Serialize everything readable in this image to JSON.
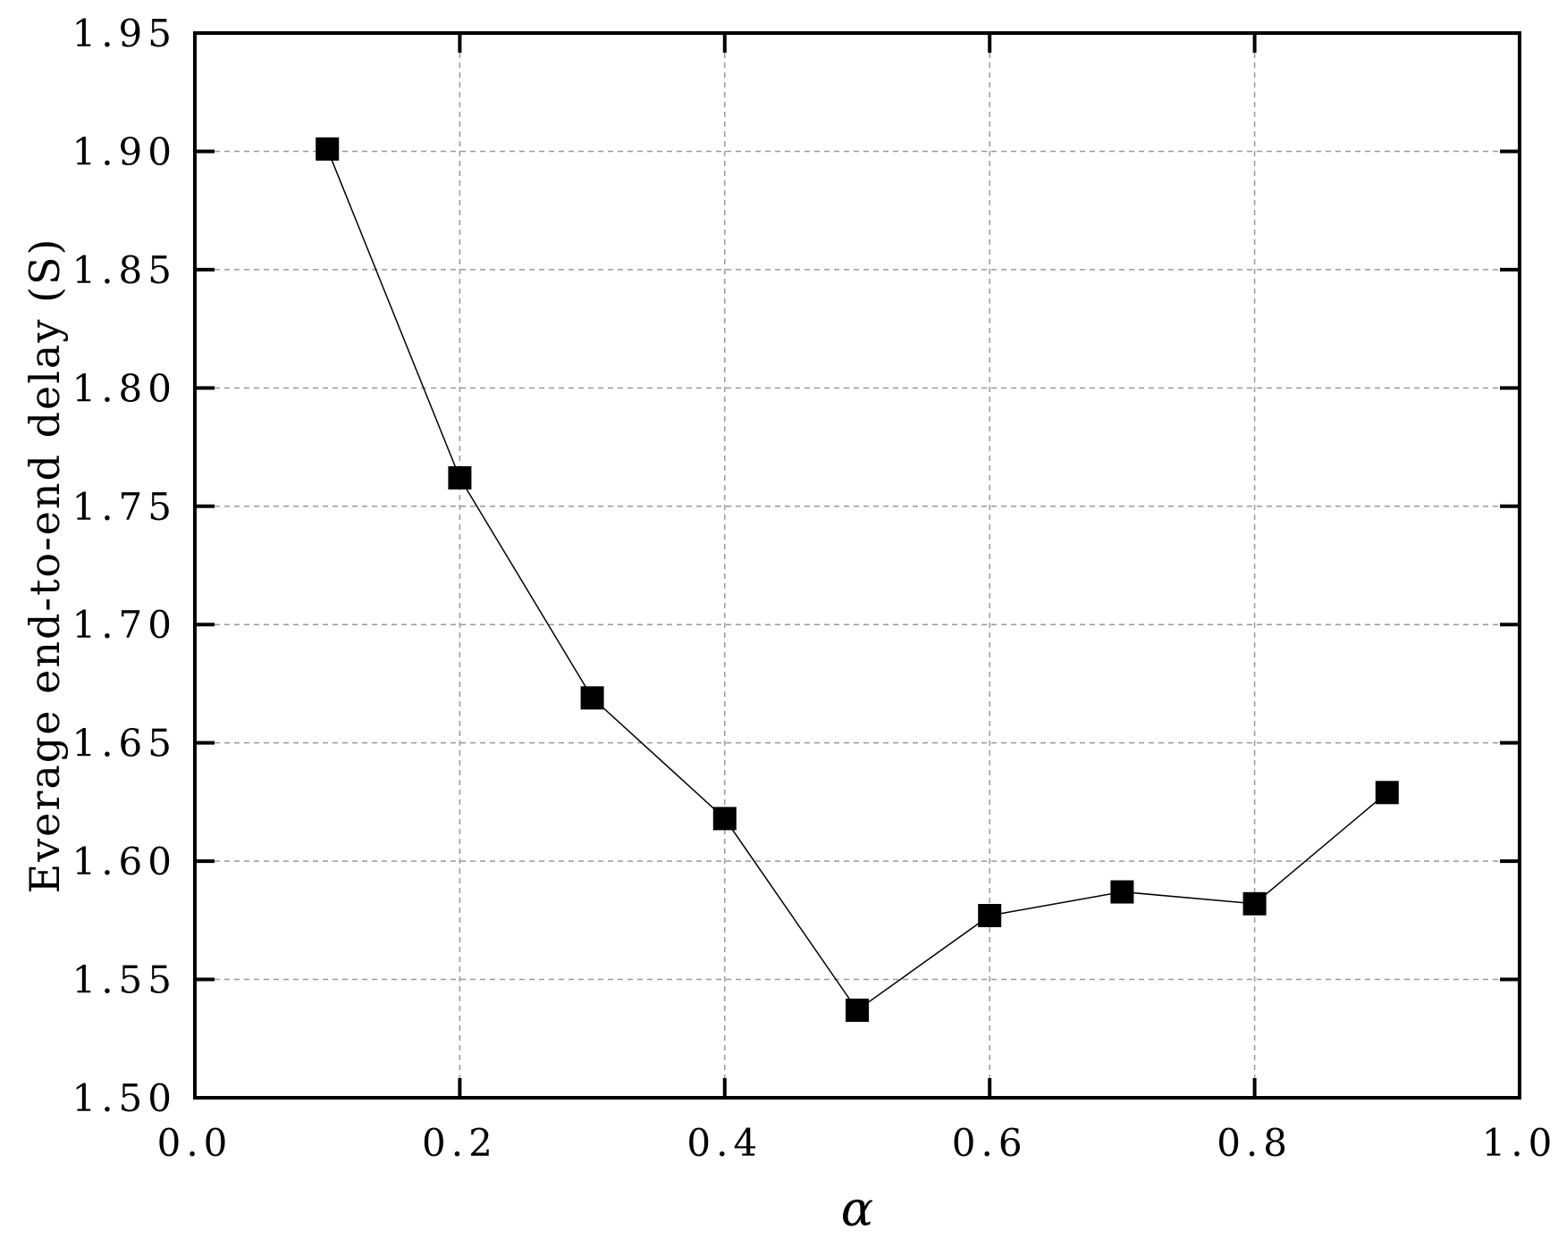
{
  "chart_data": {
    "type": "line",
    "title": "",
    "xlabel": "α",
    "ylabel": "Everage end-to-end delay (S)",
    "xlim": [
      0.0,
      1.0
    ],
    "ylim": [
      1.5,
      1.95
    ],
    "grid": true,
    "x_ticks": [
      {
        "value": 0.0,
        "label": "0.0"
      },
      {
        "value": 0.2,
        "label": "0.2"
      },
      {
        "value": 0.4,
        "label": "0.4"
      },
      {
        "value": 0.6,
        "label": "0.6"
      },
      {
        "value": 0.8,
        "label": "0.8"
      },
      {
        "value": 1.0,
        "label": "1.0"
      }
    ],
    "y_ticks": [
      {
        "value": 1.5,
        "label": "1.50"
      },
      {
        "value": 1.55,
        "label": "1.55"
      },
      {
        "value": 1.6,
        "label": "1.60"
      },
      {
        "value": 1.65,
        "label": "1.65"
      },
      {
        "value": 1.7,
        "label": "1.70"
      },
      {
        "value": 1.75,
        "label": "1.75"
      },
      {
        "value": 1.8,
        "label": "1.80"
      },
      {
        "value": 1.85,
        "label": "1.85"
      },
      {
        "value": 1.9,
        "label": "1.90"
      },
      {
        "value": 1.95,
        "label": "1.95"
      }
    ],
    "series": [
      {
        "x": [
          0.1,
          0.2,
          0.3,
          0.4,
          0.5,
          0.6,
          0.7,
          0.8,
          0.9
        ],
        "values": [
          1.901,
          1.762,
          1.669,
          1.618,
          1.537,
          1.577,
          1.587,
          1.582,
          1.629
        ],
        "marker": "square",
        "color": "#000000"
      }
    ]
  }
}
